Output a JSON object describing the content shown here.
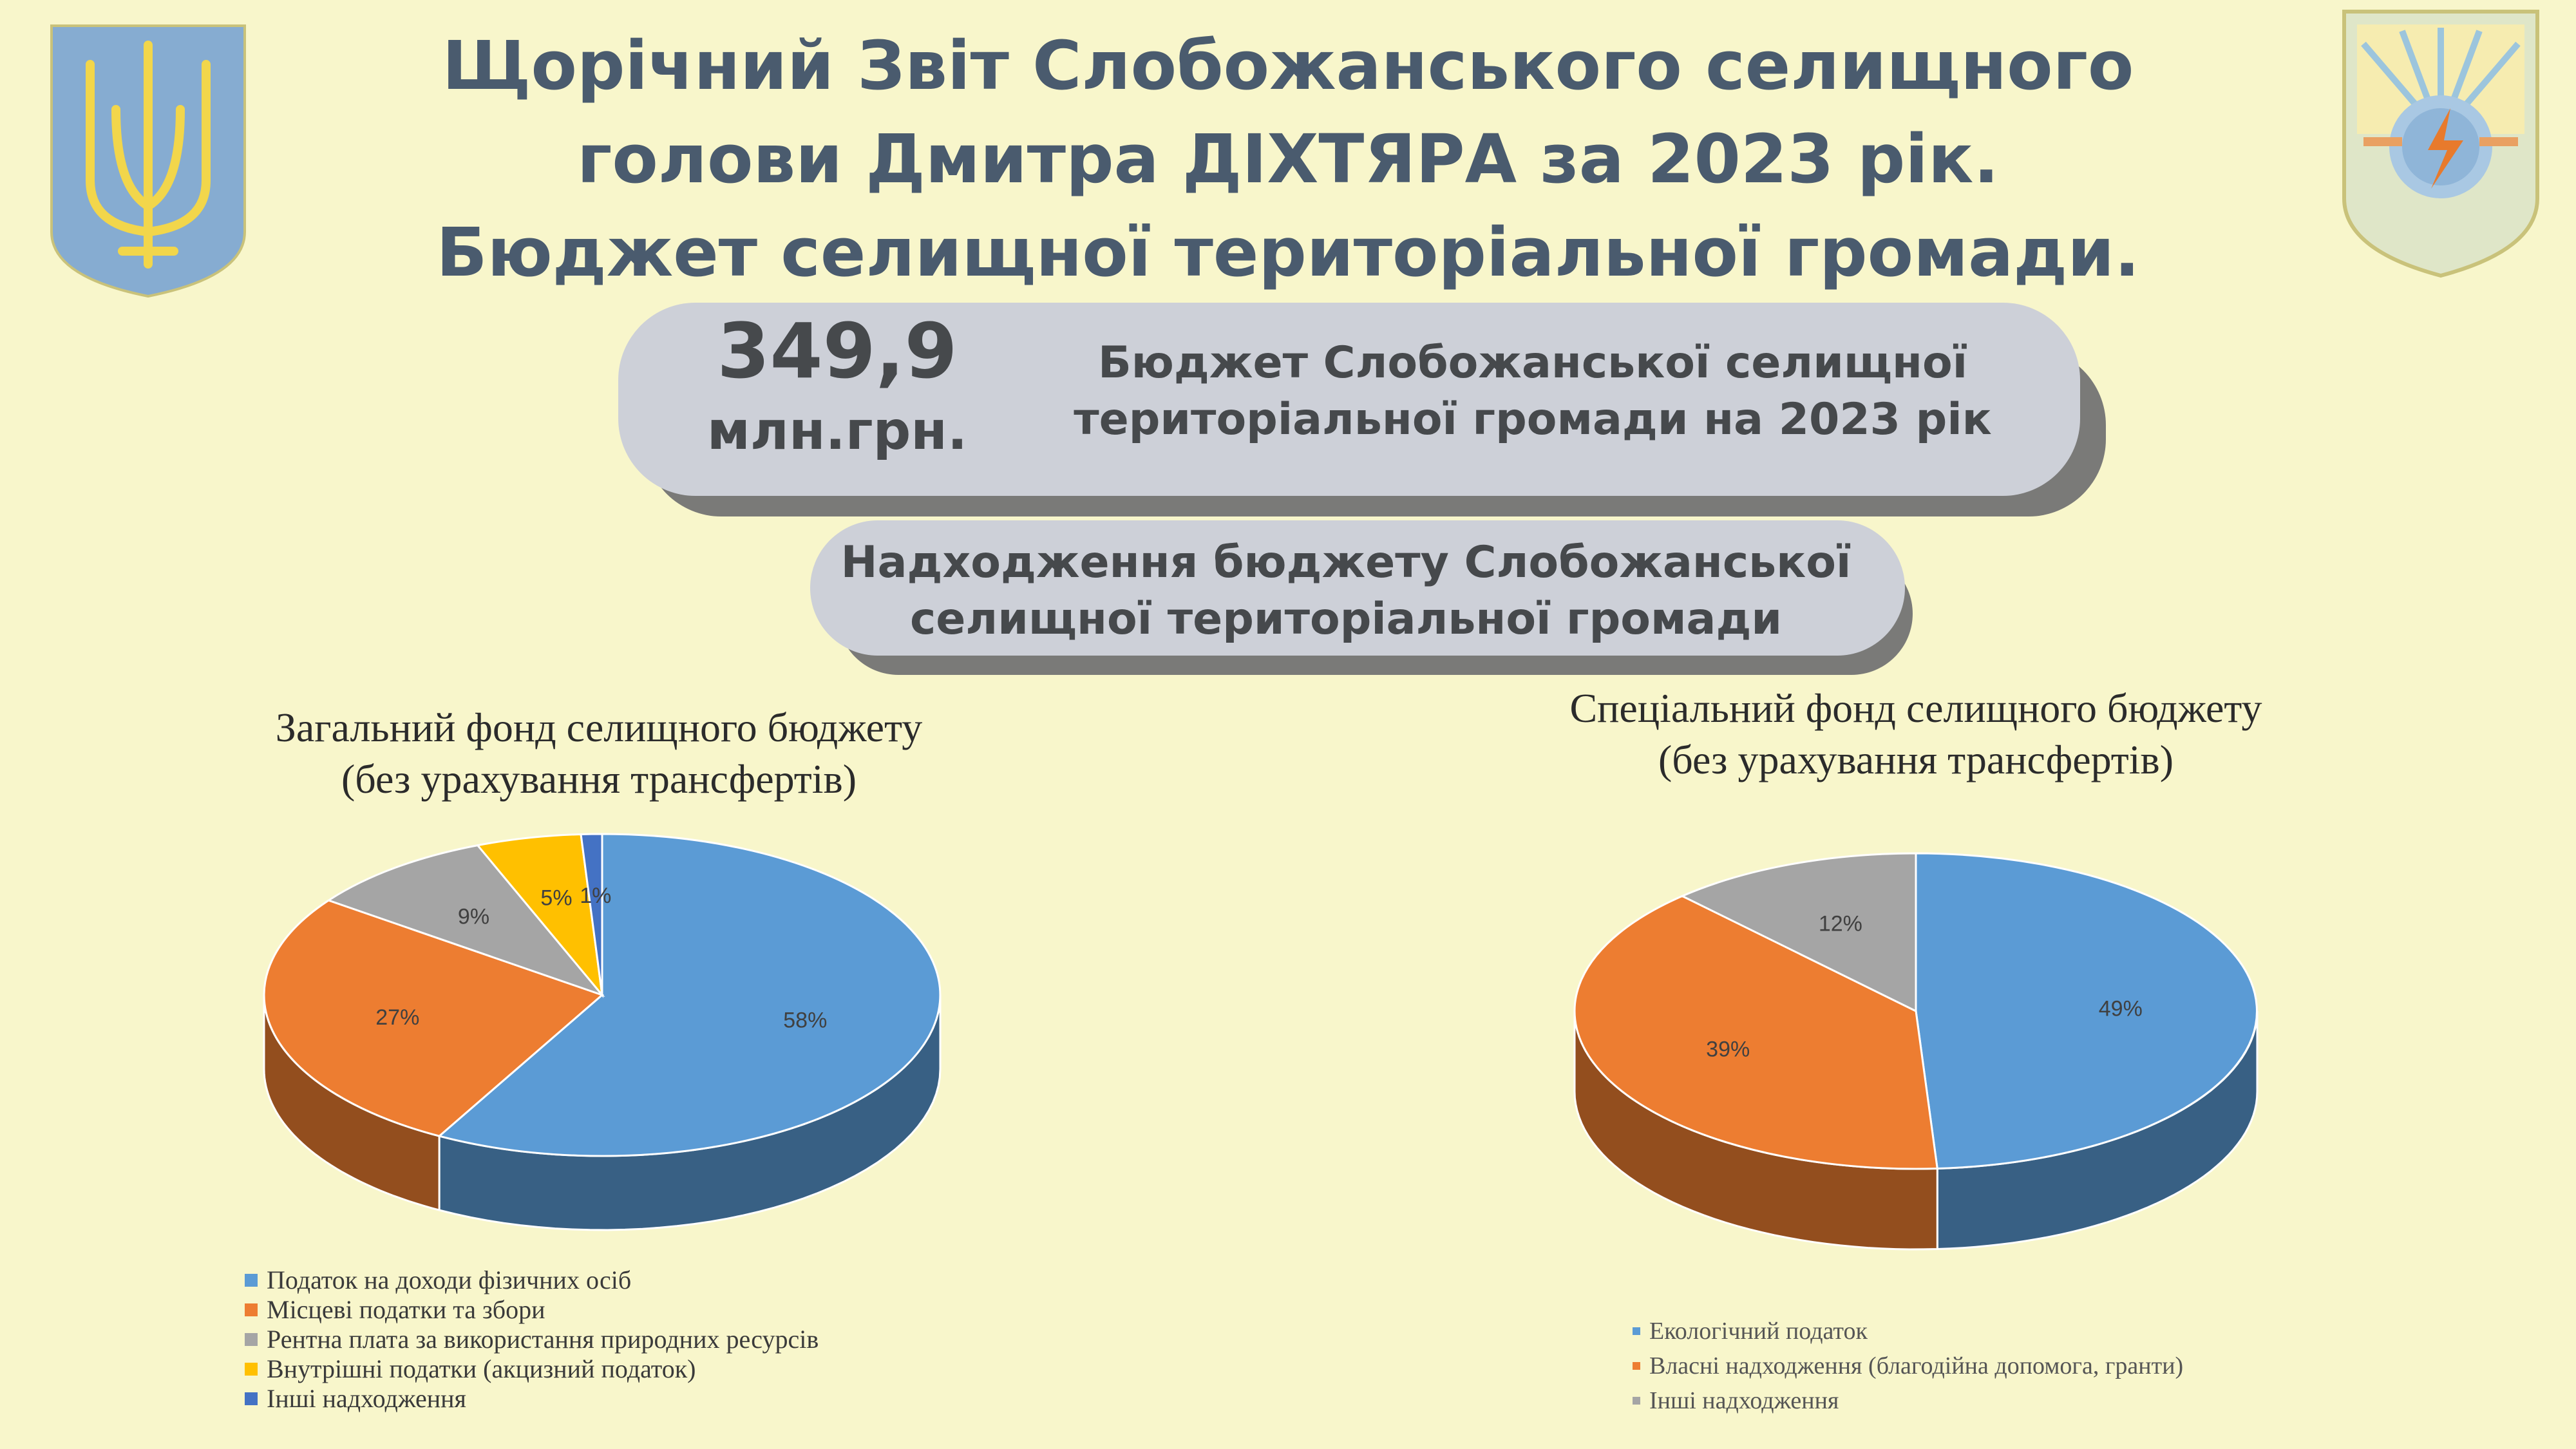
{
  "header": {
    "title_lines": [
      "Щорічний Звіт Слобожанського селищного",
      "голови Дмитра ДІХТЯРА за 2023 рік.",
      "Бюджет селищної територіальної громади."
    ]
  },
  "budget": {
    "value": "349,9",
    "unit": "млн.грн.",
    "label_lines": [
      "Бюджет Слобожанської селищної",
      "територіальної громади на 2023 рік"
    ]
  },
  "income": {
    "label_lines": [
      "Надходження бюджету Слобожанської",
      "селищної територіальної громади"
    ]
  },
  "colors": {
    "background": "#f8f6cb",
    "title": "#4a5b6e",
    "pill": "#cdd0d8",
    "blue": "#5b9bd5",
    "orange": "#ed7d31",
    "gray": "#a5a5a5",
    "yellow": "#ffc000",
    "darkblue": "#4472c4"
  },
  "chart_data": [
    {
      "type": "pie",
      "title_lines": [
        "Загальний  фонд селищного  бюджету",
        "(без урахування  трансфертів)"
      ],
      "slices": [
        {
          "label": "Податок на доходи фізичних осіб",
          "value": 58,
          "display": "58%",
          "color": "#5b9bd5"
        },
        {
          "label": "Місцеві податки та збори",
          "value": 27,
          "display": "27%",
          "color": "#ed7d31"
        },
        {
          "label": "Рентна плата за використання природних ресурсів",
          "value": 9,
          "display": "9%",
          "color": "#a5a5a5"
        },
        {
          "label": "Внутрішні податки (акцизний податок)",
          "value": 5,
          "display": "5%",
          "color": "#ffc000"
        },
        {
          "label": "Інші надходження",
          "value": 1,
          "display": "1%",
          "color": "#4472c4"
        }
      ],
      "legend_position": "bottom-left"
    },
    {
      "type": "pie",
      "title_lines": [
        "Спеціальний  фонд селищного  бюджету",
        "(без урахування  трансфертів)"
      ],
      "slices": [
        {
          "label": "Екологічний  податок",
          "value": 49,
          "display": "49%",
          "color": "#5b9bd5"
        },
        {
          "label": "Власні  надходження  (благодійна  допомога, гранти)",
          "value": 39,
          "display": "39%",
          "color": "#ed7d31"
        },
        {
          "label": "Інші надходження",
          "value": 12,
          "display": "12%",
          "color": "#a5a5a5"
        }
      ],
      "legend_position": "bottom"
    }
  ]
}
